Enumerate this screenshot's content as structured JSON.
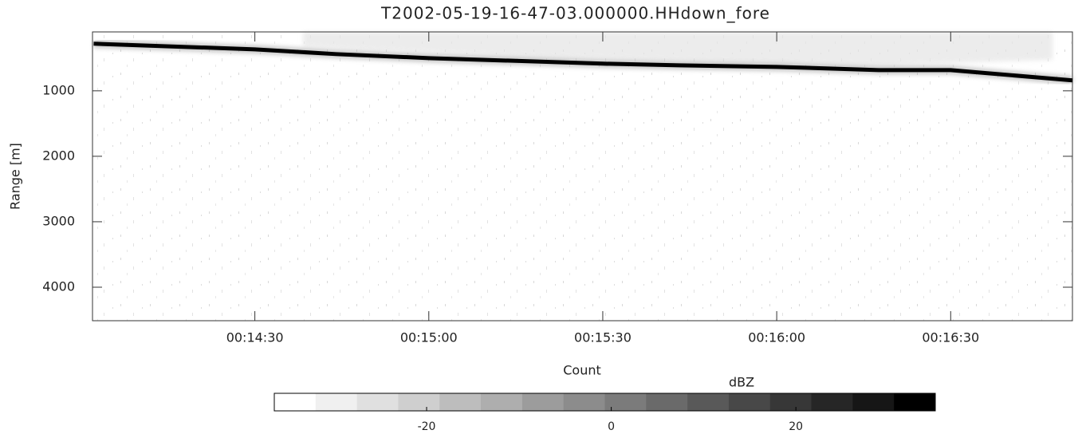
{
  "chart_data": {
    "type": "line",
    "title": "T2002-05-19-16-47-03.000000.HHdown_fore",
    "xlabel": "Count",
    "ylabel": "Range [m]",
    "x": [
      842.2,
      870,
      884,
      900,
      930,
      943.2,
      960,
      977.6,
      990,
      1011
    ],
    "series": [
      {
        "color": "#000000",
        "values": [
          280,
          366,
          439,
          500,
          585,
          610,
          634,
          683,
          683,
          841
        ]
      }
    ],
    "xlim": [
      842,
      1011
    ],
    "xticks": [
      {
        "value": 870,
        "label": "00:14:30"
      },
      {
        "value": 900,
        "label": "00:15:00"
      },
      {
        "value": 930,
        "label": "00:15:30"
      },
      {
        "value": 960,
        "label": "00:16:00"
      },
      {
        "value": 990,
        "label": "00:16:30"
      }
    ],
    "ylim": [
      100,
      4512
    ],
    "y_inverted": true,
    "yticks": [
      1000,
      2000,
      3000,
      4000
    ],
    "colorbar": {
      "label": "dBZ",
      "lim": [
        -36.5,
        35.1
      ],
      "ticks": [
        -20,
        0,
        20
      ],
      "colors": [
        "#ffffff",
        "#f0f0f0",
        "#e0e0e0",
        "#cfcfcf",
        "#bdbdbd",
        "#aeaeae",
        "#9c9c9c",
        "#8c8c8c",
        "#7b7b7b",
        "#6a6a6a",
        "#595959",
        "#484848",
        "#373737",
        "#262626",
        "#161616",
        "#000000"
      ]
    }
  }
}
